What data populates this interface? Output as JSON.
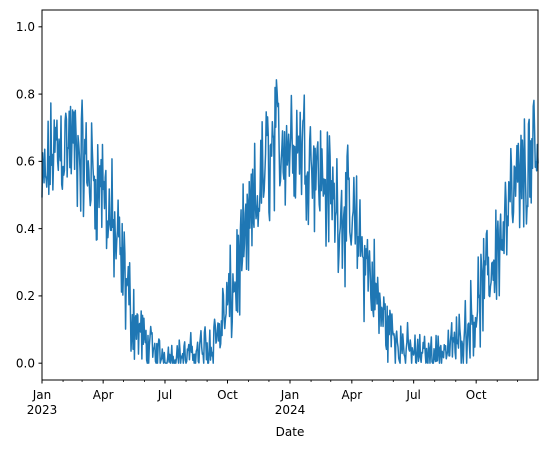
{
  "chart_data": {
    "type": "line",
    "title": "",
    "xlabel": "Date",
    "ylabel": "",
    "x_range": [
      "2023-01-01",
      "2024-12-31"
    ],
    "ylim": [
      -0.05,
      1.05
    ],
    "grid": false,
    "legend": "none",
    "line_color": "#1f77b4",
    "y_ticks": [
      {
        "value": 0.0,
        "label": "0.0"
      },
      {
        "value": 0.2,
        "label": "0.2"
      },
      {
        "value": 0.4,
        "label": "0.4"
      },
      {
        "value": 0.6,
        "label": "0.6"
      },
      {
        "value": 0.8,
        "label": "0.8"
      },
      {
        "value": 1.0,
        "label": "1.0"
      }
    ],
    "x_major_ticks": [
      {
        "date": "2023-01-01",
        "label": "Jan",
        "sublabel": "2023"
      },
      {
        "date": "2023-04-01",
        "label": "Apr",
        "sublabel": ""
      },
      {
        "date": "2023-07-01",
        "label": "Jul",
        "sublabel": ""
      },
      {
        "date": "2023-10-01",
        "label": "Oct",
        "sublabel": ""
      },
      {
        "date": "2024-01-01",
        "label": "Jan",
        "sublabel": "2024"
      },
      {
        "date": "2024-04-01",
        "label": "Apr",
        "sublabel": ""
      },
      {
        "date": "2024-07-01",
        "label": "Jul",
        "sublabel": ""
      },
      {
        "date": "2024-10-01",
        "label": "Oct",
        "sublabel": ""
      }
    ],
    "x_minor_ticks": [
      "2023-02-01",
      "2023-03-01",
      "2023-05-01",
      "2023-06-01",
      "2023-08-01",
      "2023-09-01",
      "2023-11-01",
      "2023-12-01",
      "2024-02-01",
      "2024-03-01",
      "2024-05-01",
      "2024-06-01",
      "2024-08-01",
      "2024-09-01",
      "2024-11-01",
      "2024-12-01"
    ],
    "series": [
      {
        "x": [
          "2023-01-01",
          "2023-01-15",
          "2023-02-01",
          "2023-02-15",
          "2023-03-01",
          "2023-03-15",
          "2023-04-01",
          "2023-04-15",
          "2023-05-01",
          "2023-05-15",
          "2023-06-01",
          "2023-06-15",
          "2023-07-01",
          "2023-07-15",
          "2023-08-01",
          "2023-08-15",
          "2023-09-01",
          "2023-09-15",
          "2023-10-01",
          "2023-10-15",
          "2023-11-01",
          "2023-11-15",
          "2023-12-01",
          "2023-12-15",
          "2024-01-01",
          "2024-01-15",
          "2024-02-01",
          "2024-02-15",
          "2024-03-01",
          "2024-03-15",
          "2024-04-01",
          "2024-04-15",
          "2024-05-01",
          "2024-05-15",
          "2024-06-01",
          "2024-06-15",
          "2024-07-01",
          "2024-07-15",
          "2024-08-01",
          "2024-08-15",
          "2024-09-01",
          "2024-09-15",
          "2024-10-01",
          "2024-10-15",
          "2024-11-01",
          "2024-11-15",
          "2024-12-01",
          "2024-12-15",
          "2024-12-31"
        ],
        "y": [
          0.5,
          0.62,
          0.66,
          0.64,
          0.6,
          0.56,
          0.52,
          0.4,
          0.26,
          0.14,
          0.06,
          0.03,
          0.02,
          0.02,
          0.02,
          0.03,
          0.05,
          0.08,
          0.16,
          0.26,
          0.38,
          0.5,
          0.62,
          0.66,
          0.66,
          0.66,
          0.62,
          0.56,
          0.5,
          0.46,
          0.42,
          0.34,
          0.24,
          0.14,
          0.08,
          0.05,
          0.03,
          0.03,
          0.03,
          0.04,
          0.06,
          0.1,
          0.16,
          0.24,
          0.34,
          0.44,
          0.52,
          0.58,
          0.6
        ],
        "spread": [
          0.16,
          0.18,
          0.2,
          0.2,
          0.2,
          0.2,
          0.2,
          0.2,
          0.18,
          0.14,
          0.09,
          0.07,
          0.06,
          0.06,
          0.06,
          0.07,
          0.09,
          0.11,
          0.15,
          0.18,
          0.2,
          0.21,
          0.22,
          0.22,
          0.22,
          0.22,
          0.2,
          0.2,
          0.2,
          0.2,
          0.2,
          0.2,
          0.18,
          0.14,
          0.1,
          0.08,
          0.07,
          0.06,
          0.06,
          0.07,
          0.08,
          0.11,
          0.14,
          0.17,
          0.19,
          0.2,
          0.21,
          0.21,
          0.2
        ]
      }
    ]
  }
}
